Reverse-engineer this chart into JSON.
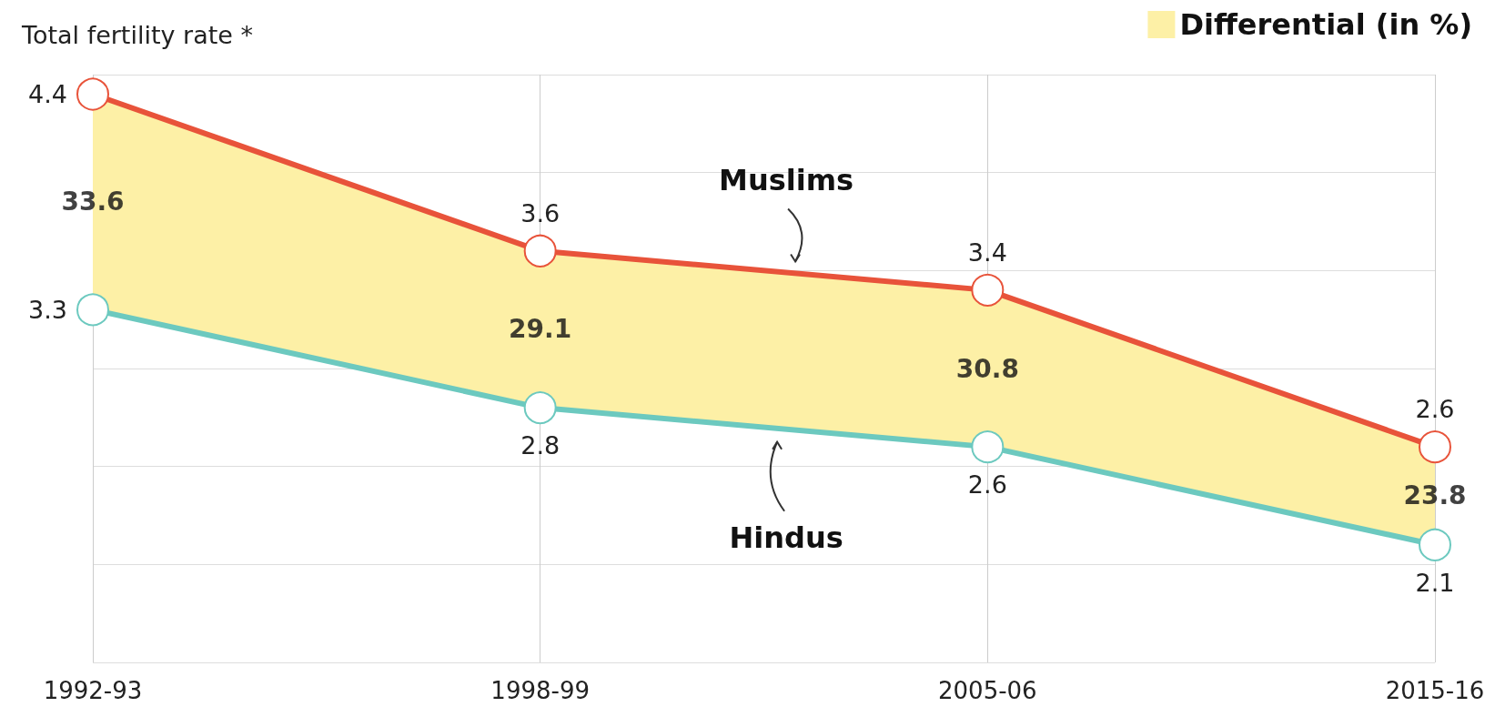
{
  "chart_data": {
    "type": "line",
    "ylabel": "Total fertility rate *",
    "categories": [
      "1992-93",
      "1998-99",
      "2005-06",
      "2015-16"
    ],
    "series": [
      {
        "name": "Muslims",
        "color": "#e8533a",
        "values": [
          4.4,
          3.6,
          3.4,
          2.6
        ]
      },
      {
        "name": "Hindus",
        "color": "#6cc9bf",
        "values": [
          3.3,
          2.8,
          2.6,
          2.1
        ]
      },
      {
        "name": "Differential (in %)",
        "type": "area",
        "color": "#fdf0a6",
        "values": [
          null,
          null,
          null,
          null
        ],
        "lower": [
          3.3,
          2.8,
          2.6,
          2.1
        ],
        "upper": [
          4.4,
          3.6,
          3.4,
          2.6
        ]
      }
    ],
    "annotations": [
      "33.6",
      "29.1",
      "30.8",
      "23.8"
    ],
    "ylim": [
      1.5,
      4.5
    ],
    "yticks": [
      {
        "value": 1.5,
        "label": null
      },
      {
        "value": 2,
        "label": null
      },
      {
        "value": 2.5,
        "label": null
      },
      {
        "value": 3,
        "label": null
      },
      {
        "value": 3.5,
        "label": null
      },
      {
        "value": 4,
        "label": null
      },
      {
        "value": 4.5,
        "label": null
      }
    ],
    "tick_labels": "x",
    "grid": true,
    "legend": "top right",
    "data_labels": true,
    "marker": "circle",
    "line_style": "solid"
  }
}
